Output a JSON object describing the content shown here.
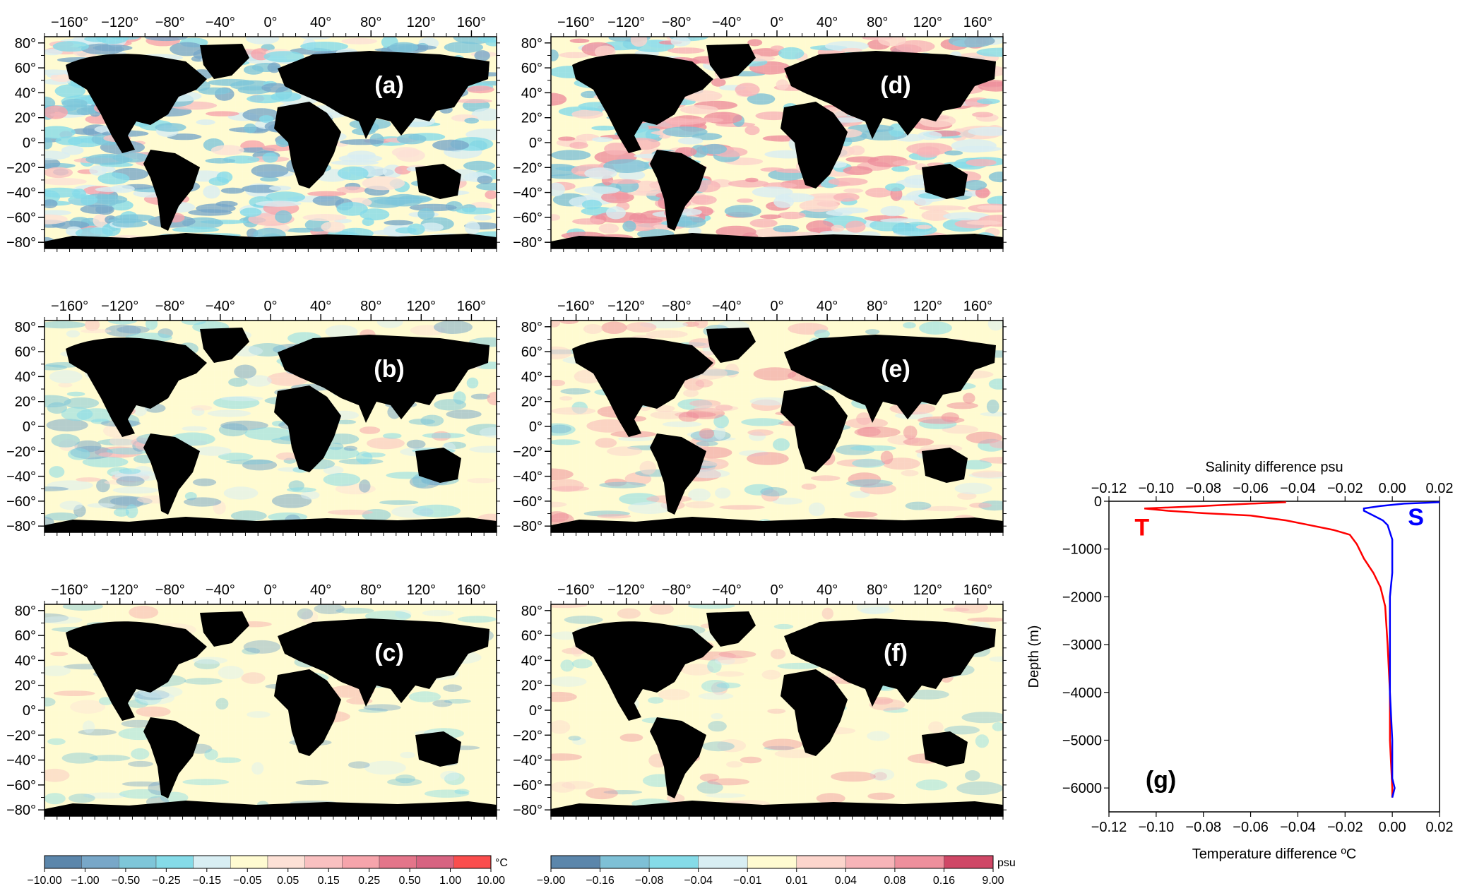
{
  "chart_data": [
    {
      "type": "heatmap",
      "panel": "(a)",
      "colorbar": "temperature"
    },
    {
      "type": "heatmap",
      "panel": "(b)",
      "colorbar": "temperature"
    },
    {
      "type": "heatmap",
      "panel": "(c)",
      "colorbar": "temperature"
    },
    {
      "type": "heatmap",
      "panel": "(d)",
      "colorbar": "salinity"
    },
    {
      "type": "heatmap",
      "panel": "(e)",
      "colorbar": "salinity"
    },
    {
      "type": "heatmap",
      "panel": "(f)",
      "colorbar": "salinity"
    },
    {
      "type": "line",
      "panel": "(g)",
      "xlabel_top": "Salinity difference psu",
      "xlabel_bottom": "Temperature difference ºC",
      "ylabel": "Depth (m)",
      "xlim": [
        -0.12,
        0.02
      ],
      "ylim": [
        -6500,
        0
      ],
      "x_ticks": [
        "−0.12",
        "−0.10",
        "−0.08",
        "−0.06",
        "−0.04",
        "−0.02",
        "0.00",
        "0.02"
      ],
      "y_ticks": [
        "0",
        "−1000",
        "−2000",
        "−3000",
        "−4000",
        "−5000",
        "−6000"
      ],
      "x_tick_values": [
        -0.12,
        -0.1,
        -0.08,
        -0.06,
        -0.04,
        -0.02,
        0.0,
        0.02
      ],
      "y_tick_values": [
        0,
        -1000,
        -2000,
        -3000,
        -4000,
        -5000,
        -6000
      ],
      "series": [
        {
          "name": "T",
          "color": "#ff0000",
          "x": [
            -0.045,
            -0.06,
            -0.08,
            -0.105,
            -0.095,
            -0.08,
            -0.06,
            -0.045,
            -0.035,
            -0.025,
            -0.018,
            -0.015,
            -0.012,
            -0.008,
            -0.005,
            -0.004,
            -0.003,
            -0.002,
            -0.001,
            -0.001,
            0.0,
            0.0
          ],
          "y": [
            -20,
            -50,
            -100,
            -150,
            -200,
            -250,
            -300,
            -400,
            -500,
            -600,
            -700,
            -900,
            -1200,
            -1500,
            -1800,
            -2000,
            -2200,
            -3000,
            -4000,
            -5000,
            -6000,
            -6200
          ]
        },
        {
          "name": "S",
          "color": "#0000ff",
          "x": [
            0.02,
            0.005,
            -0.005,
            -0.012,
            -0.012,
            -0.008,
            -0.004,
            -0.002,
            0.0,
            0.0,
            0.0,
            -0.001,
            -0.001,
            -0.001,
            0.0,
            0.0,
            0.001,
            0.0
          ],
          "y": [
            -20,
            -50,
            -100,
            -150,
            -200,
            -300,
            -400,
            -500,
            -800,
            -1200,
            -1500,
            -2000,
            -3000,
            -4000,
            -5000,
            -5800,
            -6000,
            -6200
          ]
        }
      ]
    }
  ],
  "map_axes": {
    "lon_ticks": [
      "−160°",
      "−120°",
      "−80°",
      "−40°",
      "0°",
      "40°",
      "80°",
      "120°",
      "160°"
    ],
    "lon_values": [
      -160,
      -120,
      -80,
      -40,
      0,
      40,
      80,
      120,
      160
    ],
    "lat_ticks": [
      "80°",
      "60°",
      "40°",
      "20°",
      "0°",
      "−20°",
      "−40°",
      "−60°",
      "−80°"
    ],
    "lat_values": [
      80,
      60,
      40,
      20,
      0,
      -20,
      -40,
      -60,
      -80
    ]
  },
  "colorbars": {
    "temperature": {
      "unit": "°C",
      "labels": [
        "−10.00",
        "−1.00",
        "−0.50",
        "−0.25",
        "−0.15",
        "−0.05",
        "0.05",
        "0.15",
        "0.25",
        "0.50",
        "1.00",
        "10.00"
      ],
      "colors": [
        "#5b86ab",
        "#78a7c8",
        "#7ec6d9",
        "#85dbe8",
        "#d8eef3",
        "#fffbd1",
        "#fde1d6",
        "#f9c0c0",
        "#f6a4ab",
        "#e4758a",
        "#d76381",
        "#fa4d4d"
      ]
    },
    "salinity": {
      "unit": "psu",
      "labels": [
        "−9.00",
        "−0.16",
        "−0.08",
        "−0.04",
        "−0.01",
        "0.01",
        "0.04",
        "0.08",
        "0.16",
        "9.00"
      ],
      "colors": [
        "#5b86ab",
        "#7ec0d6",
        "#85dbe8",
        "#d8eef3",
        "#fffbd1",
        "#fcd5cc",
        "#f7b4b8",
        "#ee8f9c",
        "#cf4766"
      ]
    }
  }
}
